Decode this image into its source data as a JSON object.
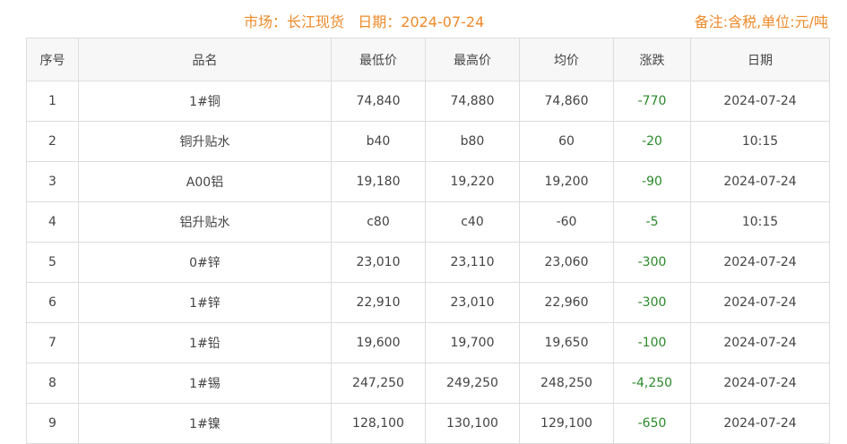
{
  "header": {
    "title": "市场：长江现货   日期：2024-07-24",
    "note": "备注:含税,单位:元/吨"
  },
  "columns": [
    "序号",
    "品名",
    "最低价",
    "最高价",
    "均价",
    "涨跌",
    "日期"
  ],
  "rows": [
    [
      "1",
      "1#铜",
      "74,840",
      "74,880",
      "74,860",
      "-770",
      "2024-07-24"
    ],
    [
      "2",
      "铜升贴水",
      "b40",
      "b80",
      "60",
      "-20",
      "10:15"
    ],
    [
      "3",
      "A00铝",
      "19,180",
      "19,220",
      "19,200",
      "-90",
      "2024-07-24"
    ],
    [
      "4",
      "铝升贴水",
      "c80",
      "c40",
      "-60",
      "-5",
      "10:15"
    ],
    [
      "5",
      "0#锌",
      "23,010",
      "23,110",
      "23,060",
      "-300",
      "2024-07-24"
    ],
    [
      "6",
      "1#锌",
      "22,910",
      "23,010",
      "22,960",
      "-300",
      "2024-07-24"
    ],
    [
      "7",
      "1#铅",
      "19,600",
      "19,700",
      "19,650",
      "-100",
      "2024-07-24"
    ],
    [
      "8",
      "1#锡",
      "247,250",
      "249,250",
      "248,250",
      "-4,250",
      "2024-07-24"
    ],
    [
      "9",
      "1#镍",
      "128,100",
      "130,100",
      "129,100",
      "-650",
      "2024-07-24"
    ]
  ],
  "colors": {
    "accent": "#ee8a2a",
    "down": "#2a8a2a"
  }
}
